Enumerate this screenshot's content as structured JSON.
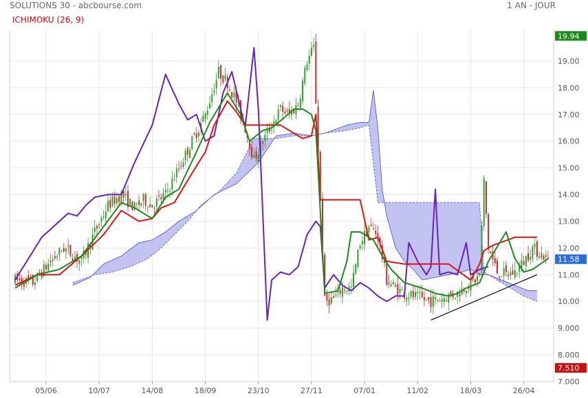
{
  "header": {
    "title": "SOLUTIONS 30 - abcbourse.com",
    "period": "1 AN - JOUR"
  },
  "indicator_label": "ICHIMOKU (26, 9)",
  "price_tags": {
    "high": {
      "value": "19.94",
      "y": 19.94,
      "color": "#1a8a1a"
    },
    "last": {
      "value": "11.58",
      "y": 11.58,
      "color": "#2a6ed8"
    },
    "low": {
      "value": "7.510",
      "y": 7.51,
      "color": "#cc1111"
    }
  },
  "chart_data": {
    "type": "line",
    "title": "SOLUTIONS 30",
    "xlabel": "",
    "ylabel": "",
    "ylim": [
      7.0,
      20.0
    ],
    "y_ticks": [
      "7.000",
      "8.000",
      "9.000",
      "10.00",
      "11.00",
      "12.00",
      "13.00",
      "14.00",
      "15.00",
      "16.00",
      "17.00",
      "18.00",
      "19.00",
      "20.00"
    ],
    "x_ticks": [
      "05/06",
      "10/07",
      "14/08",
      "18/09",
      "23/10",
      "27/11",
      "07/01",
      "11/02",
      "18/03",
      "26/04"
    ],
    "x_tick_index": [
      14,
      38,
      62,
      86,
      110,
      134,
      158,
      182,
      206,
      230
    ],
    "n_points": 242,
    "grid": true,
    "colors": {
      "candle_up": "#22a022",
      "candle_down": "#cc2222",
      "tenkan": "#e81010",
      "kijun": "#1a8a1a",
      "chikou": "#6a1fb8",
      "cloud_fill": "#b8b8f0",
      "cloud_line": "#4a4ad0",
      "trendline": "#000000"
    },
    "price_anchors": [
      [
        0,
        10.8
      ],
      [
        8,
        10.7
      ],
      [
        15,
        11.4
      ],
      [
        22,
        12.0
      ],
      [
        30,
        11.5
      ],
      [
        36,
        12.6
      ],
      [
        42,
        13.6
      ],
      [
        48,
        14.0
      ],
      [
        54,
        13.5
      ],
      [
        58,
        13.8
      ],
      [
        62,
        13.6
      ],
      [
        68,
        14.0
      ],
      [
        74,
        15.0
      ],
      [
        80,
        16.0
      ],
      [
        86,
        17.0
      ],
      [
        92,
        18.6
      ],
      [
        96,
        18.2
      ],
      [
        100,
        17.5
      ],
      [
        104,
        16.5
      ],
      [
        108,
        15.3
      ],
      [
        112,
        16.0
      ],
      [
        116,
        16.6
      ],
      [
        120,
        17.2
      ],
      [
        124,
        17.0
      ],
      [
        128,
        17.4
      ],
      [
        132,
        19.0
      ],
      [
        135,
        19.5
      ],
      [
        136,
        17.5
      ],
      [
        140,
        10.0
      ],
      [
        144,
        10.1
      ],
      [
        148,
        10.5
      ],
      [
        152,
        10.5
      ],
      [
        156,
        12.2
      ],
      [
        160,
        12.8
      ],
      [
        164,
        12.5
      ],
      [
        168,
        10.8
      ],
      [
        172,
        10.5
      ],
      [
        176,
        10.3
      ],
      [
        180,
        10.2
      ],
      [
        184,
        10.1
      ],
      [
        188,
        10.0
      ],
      [
        192,
        10.1
      ],
      [
        196,
        10.2
      ],
      [
        200,
        10.3
      ],
      [
        204,
        10.6
      ],
      [
        208,
        10.8
      ],
      [
        210,
        11.0
      ],
      [
        212,
        14.5
      ],
      [
        214,
        12.0
      ],
      [
        218,
        11.1
      ],
      [
        222,
        11.0
      ],
      [
        226,
        11.1
      ],
      [
        230,
        11.5
      ],
      [
        234,
        12.0
      ],
      [
        241,
        11.58
      ]
    ],
    "tenkan_anchors": [
      [
        0,
        10.6
      ],
      [
        10,
        11.0
      ],
      [
        20,
        11.0
      ],
      [
        30,
        11.7
      ],
      [
        40,
        12.5
      ],
      [
        48,
        13.4
      ],
      [
        56,
        13.0
      ],
      [
        62,
        13.1
      ],
      [
        66,
        13.5
      ],
      [
        72,
        13.7
      ],
      [
        80,
        14.8
      ],
      [
        86,
        15.6
      ],
      [
        90,
        16.6
      ],
      [
        96,
        17.5
      ],
      [
        100,
        17.1
      ],
      [
        104,
        16.6
      ],
      [
        108,
        16.6
      ],
      [
        114,
        16.6
      ],
      [
        120,
        16.6
      ],
      [
        126,
        16.3
      ],
      [
        130,
        16.1
      ],
      [
        134,
        16.2
      ],
      [
        136,
        17.0
      ],
      [
        138,
        13.8
      ],
      [
        146,
        13.8
      ],
      [
        152,
        13.8
      ],
      [
        156,
        13.8
      ],
      [
        160,
        12.3
      ],
      [
        164,
        12.4
      ],
      [
        168,
        11.5
      ],
      [
        176,
        11.4
      ],
      [
        186,
        11.4
      ],
      [
        196,
        11.4
      ],
      [
        206,
        10.8
      ],
      [
        210,
        11.4
      ],
      [
        212,
        11.9
      ],
      [
        216,
        12.1
      ],
      [
        226,
        12.4
      ],
      [
        234,
        12.4
      ],
      [
        236,
        12.4
      ]
    ],
    "kijun_anchors": [
      [
        0,
        10.5
      ],
      [
        10,
        11.0
      ],
      [
        20,
        11.2
      ],
      [
        30,
        11.7
      ],
      [
        40,
        12.8
      ],
      [
        48,
        13.7
      ],
      [
        54,
        13.5
      ],
      [
        62,
        13.1
      ],
      [
        68,
        13.9
      ],
      [
        74,
        14.2
      ],
      [
        82,
        15.6
      ],
      [
        88,
        16.7
      ],
      [
        96,
        17.8
      ],
      [
        102,
        17.0
      ],
      [
        106,
        16.0
      ],
      [
        112,
        16.4
      ],
      [
        116,
        16.5
      ],
      [
        122,
        16.9
      ],
      [
        126,
        17.2
      ],
      [
        130,
        17.2
      ],
      [
        134,
        17.0
      ],
      [
        136,
        16.4
      ],
      [
        140,
        10.3
      ],
      [
        146,
        10.4
      ],
      [
        150,
        11.5
      ],
      [
        152,
        12.6
      ],
      [
        156,
        12.6
      ],
      [
        162,
        12.3
      ],
      [
        166,
        11.7
      ],
      [
        170,
        11.2
      ],
      [
        176,
        10.7
      ],
      [
        184,
        10.5
      ],
      [
        190,
        10.3
      ],
      [
        196,
        10.2
      ],
      [
        200,
        10.3
      ],
      [
        204,
        10.5
      ],
      [
        210,
        10.7
      ],
      [
        214,
        11.5
      ],
      [
        222,
        12.6
      ],
      [
        226,
        11.6
      ],
      [
        230,
        11.1
      ],
      [
        234,
        11.2
      ],
      [
        241,
        11.6
      ]
    ],
    "chikou_anchors": [
      [
        0,
        10.8
      ],
      [
        12,
        12.4
      ],
      [
        20,
        13.0
      ],
      [
        24,
        13.3
      ],
      [
        28,
        13.2
      ],
      [
        32,
        13.6
      ],
      [
        36,
        13.9
      ],
      [
        42,
        14.0
      ],
      [
        48,
        14.0
      ],
      [
        54,
        15.2
      ],
      [
        62,
        16.6
      ],
      [
        68,
        18.5
      ],
      [
        74,
        17.4
      ],
      [
        78,
        16.8
      ],
      [
        82,
        17.0
      ],
      [
        86,
        16.0
      ],
      [
        90,
        16.2
      ],
      [
        94,
        17.8
      ],
      [
        98,
        18.6
      ],
      [
        104,
        16.5
      ],
      [
        106,
        18.0
      ],
      [
        108,
        19.5
      ],
      [
        110,
        17.2
      ],
      [
        114,
        9.3
      ],
      [
        116,
        10.8
      ],
      [
        120,
        11.1
      ],
      [
        124,
        11.0
      ],
      [
        128,
        11.3
      ],
      [
        132,
        12.5
      ],
      [
        136,
        13.0
      ],
      [
        138,
        12.8
      ],
      [
        140,
        10.5
      ],
      [
        144,
        11.0
      ],
      [
        148,
        10.6
      ],
      [
        152,
        10.4
      ],
      [
        156,
        10.7
      ],
      [
        160,
        10.5
      ],
      [
        164,
        10.2
      ],
      [
        168,
        10.0
      ],
      [
        172,
        10.2
      ],
      [
        176,
        10.2
      ],
      [
        178,
        12.2
      ],
      [
        182,
        11.5
      ],
      [
        186,
        11.0
      ],
      [
        188,
        11.3
      ],
      [
        190,
        14.2
      ],
      [
        192,
        11.0
      ],
      [
        196,
        11.1
      ],
      [
        200,
        11.0
      ],
      [
        204,
        12.2
      ],
      [
        206,
        11.0
      ],
      [
        210,
        11.2
      ],
      [
        214,
        11.3
      ]
    ],
    "ssa_anchors": [
      [
        26,
        10.6
      ],
      [
        34,
        10.9
      ],
      [
        40,
        11.4
      ],
      [
        48,
        11.7
      ],
      [
        56,
        12.2
      ],
      [
        62,
        12.3
      ],
      [
        68,
        12.6
      ],
      [
        74,
        13.0
      ],
      [
        82,
        13.4
      ],
      [
        90,
        14.0
      ],
      [
        100,
        14.4
      ],
      [
        110,
        15.2
      ],
      [
        118,
        16.2
      ],
      [
        126,
        16.3
      ],
      [
        134,
        16.2
      ],
      [
        140,
        16.3
      ],
      [
        150,
        16.6
      ],
      [
        156,
        16.7
      ],
      [
        160,
        16.7
      ],
      [
        162,
        17.9
      ],
      [
        164,
        16.5
      ],
      [
        166,
        14.2
      ],
      [
        168,
        13.2
      ],
      [
        172,
        12.0
      ],
      [
        176,
        11.5
      ],
      [
        180,
        11.2
      ],
      [
        184,
        10.8
      ],
      [
        190,
        10.9
      ],
      [
        196,
        11.0
      ],
      [
        202,
        11.1
      ],
      [
        206,
        11.2
      ],
      [
        210,
        11.0
      ],
      [
        214,
        11.0
      ],
      [
        220,
        10.8
      ],
      [
        226,
        10.6
      ],
      [
        232,
        10.4
      ],
      [
        236,
        10.4
      ]
    ],
    "ssb_anchors": [
      [
        26,
        10.7
      ],
      [
        36,
        11.0
      ],
      [
        44,
        11.1
      ],
      [
        52,
        11.3
      ],
      [
        60,
        11.6
      ],
      [
        66,
        12.0
      ],
      [
        72,
        12.5
      ],
      [
        78,
        13.0
      ],
      [
        84,
        13.6
      ],
      [
        92,
        14.1
      ],
      [
        100,
        14.8
      ],
      [
        108,
        16.1
      ],
      [
        118,
        16.1
      ],
      [
        126,
        16.2
      ],
      [
        134,
        16.2
      ],
      [
        140,
        16.3
      ],
      [
        150,
        16.4
      ],
      [
        156,
        16.5
      ],
      [
        160,
        16.6
      ],
      [
        164,
        13.7
      ],
      [
        176,
        13.7
      ],
      [
        186,
        13.7
      ],
      [
        196,
        13.7
      ],
      [
        204,
        13.7
      ],
      [
        210,
        13.7
      ],
      [
        212,
        11.1
      ],
      [
        218,
        10.8
      ],
      [
        224,
        10.5
      ],
      [
        230,
        10.2
      ],
      [
        236,
        10.0
      ]
    ],
    "trendline": [
      [
        188,
        9.3
      ],
      [
        236,
        11.0
      ]
    ]
  }
}
